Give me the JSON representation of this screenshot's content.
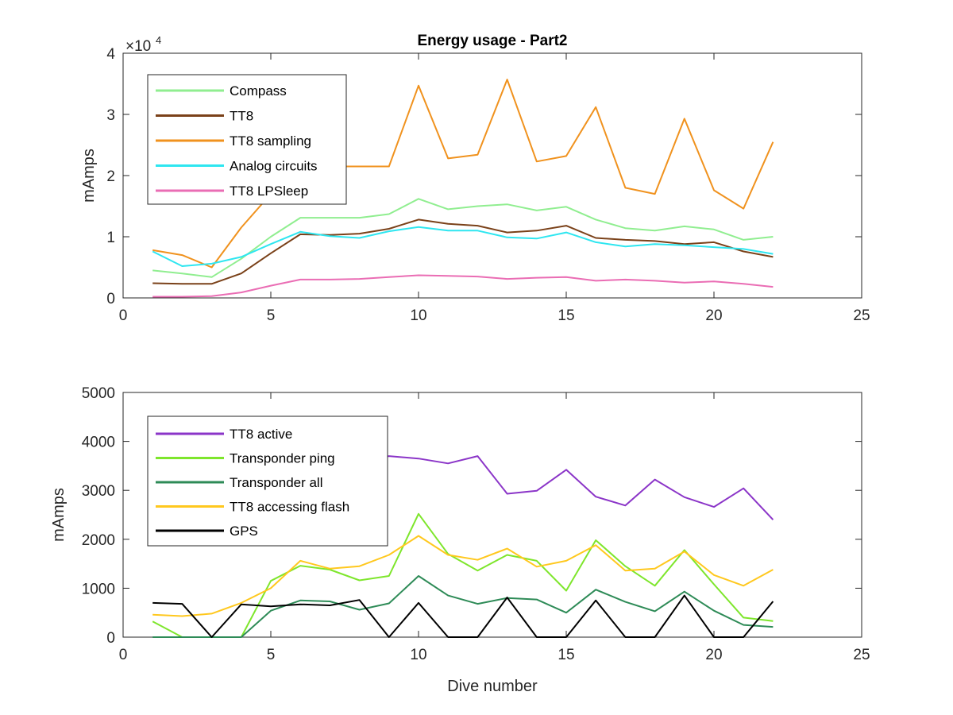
{
  "chart_data": [
    {
      "type": "line",
      "title": "Energy usage - Part2",
      "xlabel": "",
      "ylabel": "mAmps",
      "xlim": [
        0,
        25
      ],
      "ylim": [
        0,
        40000
      ],
      "xticks": [
        0,
        5,
        10,
        15,
        20,
        25
      ],
      "yticks": [
        0,
        10000,
        20000,
        30000,
        40000
      ],
      "ytick_labels": [
        "0",
        "1",
        "2",
        "3",
        "4"
      ],
      "y_exponent_label": "×10",
      "y_exponent_power": "4",
      "legend_position": "top-left",
      "grid": false,
      "x": [
        1,
        2,
        3,
        4,
        5,
        6,
        7,
        8,
        9,
        10,
        11,
        12,
        13,
        14,
        15,
        16,
        17,
        18,
        19,
        20,
        21,
        22
      ],
      "series": [
        {
          "name": "Compass",
          "color": "#90ee90",
          "values": [
            4500,
            4000,
            3400,
            6400,
            10000,
            13100,
            13100,
            13100,
            13700,
            16200,
            14500,
            15000,
            15300,
            14300,
            14900,
            12800,
            11400,
            11000,
            11700,
            11200,
            9500,
            10000
          ]
        },
        {
          "name": "TT8",
          "color": "#7a4119",
          "values": [
            2400,
            2300,
            2300,
            4000,
            7300,
            10400,
            10300,
            10500,
            11300,
            12800,
            12100,
            11800,
            10700,
            11000,
            11800,
            9800,
            9500,
            9300,
            8800,
            9100,
            7600,
            6700
          ]
        },
        {
          "name": "TT8 sampling",
          "color": "#f0921e",
          "values": [
            7800,
            7000,
            5000,
            11500,
            17000,
            21500,
            21500,
            21500,
            21500,
            34700,
            22800,
            23400,
            35700,
            22300,
            23200,
            31200,
            18000,
            17000,
            29300,
            17600,
            14600,
            25500
          ]
        },
        {
          "name": "Analog circuits",
          "color": "#2ee6f0",
          "values": [
            7600,
            5200,
            5600,
            6700,
            8800,
            10800,
            10100,
            9800,
            10900,
            11600,
            11000,
            11000,
            9900,
            9700,
            10700,
            9100,
            8400,
            8800,
            8600,
            8300,
            8000,
            7200
          ]
        },
        {
          "name": "TT8 LPSleep",
          "color": "#ea6db4",
          "values": [
            200,
            200,
            300,
            900,
            2000,
            3000,
            3000,
            3100,
            3400,
            3700,
            3600,
            3500,
            3100,
            3300,
            3400,
            2800,
            3000,
            2800,
            2500,
            2700,
            2300,
            1800
          ]
        }
      ]
    },
    {
      "type": "line",
      "title": "",
      "xlabel": "Dive number",
      "ylabel": "mAmps",
      "xlim": [
        0,
        25
      ],
      "ylim": [
        0,
        5000
      ],
      "xticks": [
        0,
        5,
        10,
        15,
        20,
        25
      ],
      "yticks": [
        0,
        1000,
        2000,
        3000,
        4000,
        5000
      ],
      "ytick_labels": [
        "0",
        "1000",
        "2000",
        "3000",
        "4000",
        "5000"
      ],
      "legend_position": "top-left",
      "grid": false,
      "x": [
        1,
        2,
        3,
        4,
        5,
        6,
        7,
        8,
        9,
        10,
        11,
        12,
        13,
        14,
        15,
        16,
        17,
        18,
        19,
        20,
        21,
        22
      ],
      "series": [
        {
          "name": "TT8 active",
          "color": "#8b35c8",
          "values": [
            2500,
            2300,
            2400,
            2700,
            3000,
            3300,
            3450,
            3600,
            3700,
            3650,
            3550,
            3700,
            2930,
            2990,
            3420,
            2870,
            2690,
            3220,
            2860,
            2660,
            3040,
            2400
          ]
        },
        {
          "name": "Transponder ping",
          "color": "#7ee62c",
          "values": [
            320,
            0,
            0,
            0,
            1150,
            1460,
            1380,
            1160,
            1250,
            2520,
            1700,
            1360,
            1680,
            1560,
            950,
            1980,
            1450,
            1050,
            1780,
            1080,
            400,
            330
          ]
        },
        {
          "name": "Transponder all",
          "color": "#2e8b57",
          "values": [
            0,
            0,
            0,
            0,
            540,
            750,
            730,
            560,
            690,
            1250,
            850,
            680,
            800,
            770,
            500,
            970,
            720,
            530,
            930,
            540,
            250,
            210
          ]
        },
        {
          "name": "TT8 accessing flash",
          "color": "#ffc81e",
          "values": [
            460,
            430,
            480,
            700,
            1000,
            1560,
            1400,
            1450,
            1680,
            2070,
            1680,
            1580,
            1810,
            1440,
            1560,
            1880,
            1360,
            1400,
            1750,
            1270,
            1050,
            1380
          ]
        },
        {
          "name": "GPS",
          "color": "#000000",
          "values": [
            700,
            680,
            0,
            670,
            630,
            670,
            650,
            760,
            0,
            700,
            0,
            0,
            810,
            0,
            0,
            750,
            0,
            0,
            850,
            0,
            0,
            730
          ]
        }
      ]
    }
  ]
}
